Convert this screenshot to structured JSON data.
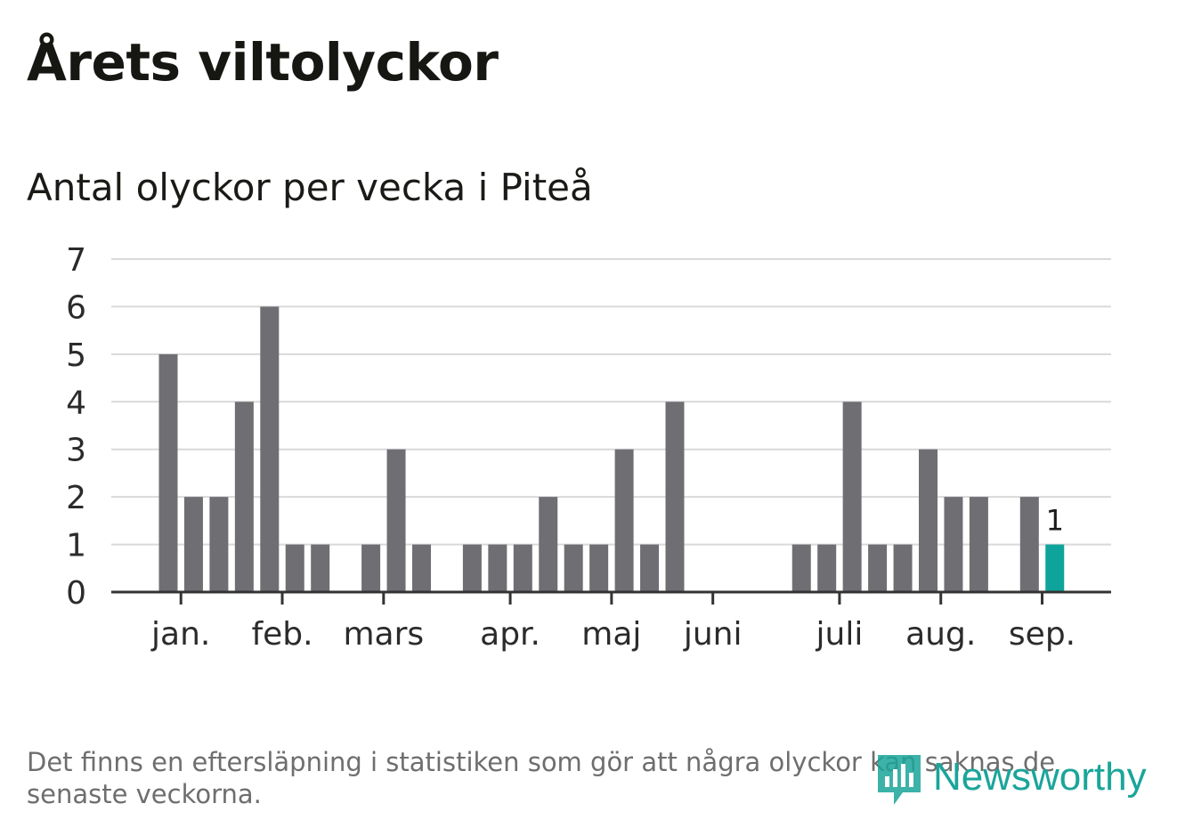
{
  "title": "Årets viltolyckor",
  "subtitle": "Antal olyckor per vecka i Piteå",
  "footnote": "Det finns en eftersläpning i statistiken som gör att några olyckor kan saknas de senaste veckorna.",
  "logo_text": "Newsworthy",
  "colors": {
    "bar": "#6f6e73",
    "highlight": "#0fa49b",
    "grid": "#d9d9d9",
    "axis": "#333333",
    "logo": "#1aa59a"
  },
  "chart_data": {
    "type": "bar",
    "title": "Antal olyckor per vecka i Piteå",
    "xlabel": "",
    "ylabel": "",
    "ylim": [
      0,
      7
    ],
    "yticks": [
      "0",
      "1",
      "2",
      "3",
      "4",
      "5",
      "6",
      "7"
    ],
    "grid": true,
    "weeks": [
      1,
      2,
      3,
      4,
      5,
      6,
      7,
      8,
      9,
      10,
      11,
      12,
      13,
      14,
      15,
      16,
      17,
      18,
      19,
      20,
      21,
      22,
      23,
      24,
      25,
      26,
      27,
      28,
      29,
      30,
      31,
      32,
      33,
      34,
      35,
      36,
      37,
      38
    ],
    "values": [
      5,
      2,
      2,
      4,
      6,
      1,
      1,
      0,
      1,
      3,
      1,
      0,
      1,
      1,
      1,
      2,
      1,
      1,
      3,
      1,
      4,
      0,
      0,
      0,
      0,
      1,
      1,
      4,
      1,
      1,
      3,
      2,
      2,
      0,
      2,
      1,
      null,
      null
    ],
    "highlight_week": 36,
    "highlight_label": "1",
    "month_labels": [
      {
        "label": "jan.",
        "week": 1.5
      },
      {
        "label": "feb.",
        "week": 5.5
      },
      {
        "label": "mars",
        "week": 9.5
      },
      {
        "label": "apr.",
        "week": 14.5
      },
      {
        "label": "maj",
        "week": 18.5
      },
      {
        "label": "juni",
        "week": 22.5
      },
      {
        "label": "juli",
        "week": 27.5
      },
      {
        "label": "aug.",
        "week": 31.5
      },
      {
        "label": "sep.",
        "week": 35.5
      }
    ]
  }
}
